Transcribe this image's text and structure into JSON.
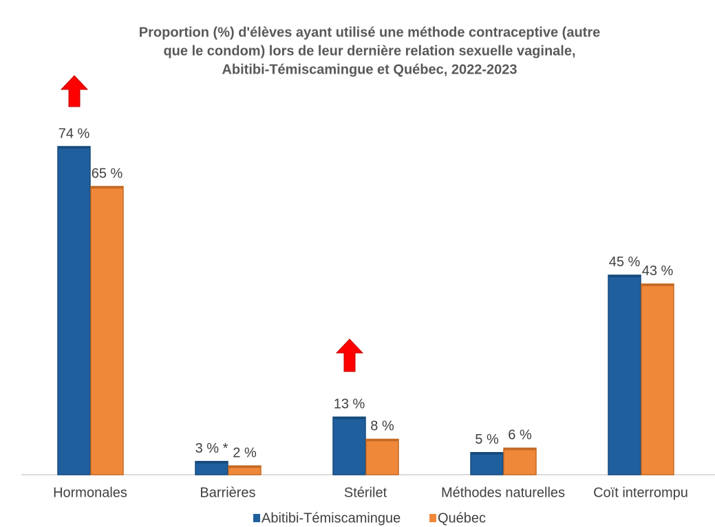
{
  "chart_data": {
    "type": "bar",
    "title": [
      "Proportion (%) d'élèves ayant utilisé une méthode contraceptive (autre",
      "que le condom) lors de leur dernière relation sexuelle vaginale,",
      "Abitibi-Témiscamingue et Québec, 2022-2023"
    ],
    "categories": [
      "Hormonales",
      "Barrières",
      "Stérilet",
      "Méthodes naturelles",
      "Coït interrompu"
    ],
    "series": [
      {
        "name": "Abitibi-Témiscamingue",
        "color": "#1f5f9e",
        "values": [
          74,
          3,
          13,
          5,
          45
        ],
        "value_labels": [
          "74 %",
          "3 % *",
          "13 %",
          "5 %",
          "45 %"
        ]
      },
      {
        "name": "Québec",
        "color": "#f0883a",
        "values": [
          65,
          2,
          8,
          6,
          43
        ],
        "value_labels": [
          "65 %",
          "2 %",
          "8 %",
          "6 %",
          "43 %"
        ]
      }
    ],
    "legend": "bottom"
  }
}
